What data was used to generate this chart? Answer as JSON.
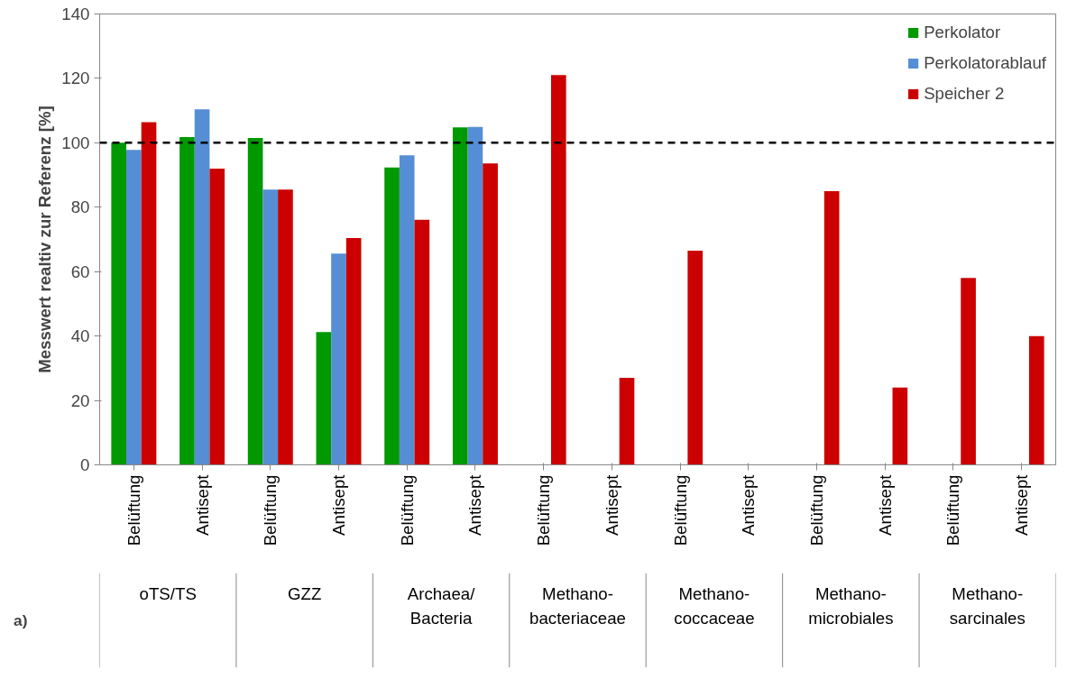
{
  "chart_data": {
    "type": "bar",
    "ylabel": "Messwert realtiv zur Referenz [%]",
    "categories": [
      "Belüftung",
      "Antisept",
      "Belüftung",
      "Antisept",
      "Belüftung",
      "Antisept",
      "Belüftung",
      "Antisept",
      "Belüftung",
      "Antisept",
      "Belüftung",
      "Antisept",
      "Belüftung",
      "Antisept"
    ],
    "series": [
      {
        "name": "Perkolator",
        "color": "#009900",
        "values": [
          100,
          101.8,
          101.5,
          41.2,
          92.3,
          104.8,
          null,
          null,
          null,
          null,
          null,
          null,
          null,
          null
        ]
      },
      {
        "name": "Perkolatorablauf",
        "color": "#558ed5",
        "values": [
          97.8,
          110.4,
          85.5,
          65.6,
          96.1,
          104.9,
          null,
          null,
          null,
          null,
          null,
          null,
          null,
          null
        ]
      },
      {
        "name": "Speicher 2",
        "color": "#cc0000",
        "values": [
          106.4,
          92.0,
          85.5,
          70.4,
          76.1,
          93.6,
          121,
          27,
          66.5,
          null,
          85,
          24,
          58,
          40
        ]
      }
    ],
    "ylim": [
      0,
      140
    ],
    "yticks": [
      0,
      20,
      40,
      60,
      80,
      100,
      120,
      140
    ],
    "grid": false,
    "legend": "top right",
    "ref_lines": [
      {
        "axis": "y",
        "value": 100,
        "color": "#000000",
        "line_style": "dashed"
      }
    ],
    "annotations": [
      "a)",
      "oTS/TS",
      "GZZ",
      "Archaea/\nBacteria",
      "Methano-\nbacteriaceae",
      "Methano-\ncoccaceae",
      "Methano-\nmicrobiales",
      "Methano-\nsarcinales"
    ]
  }
}
